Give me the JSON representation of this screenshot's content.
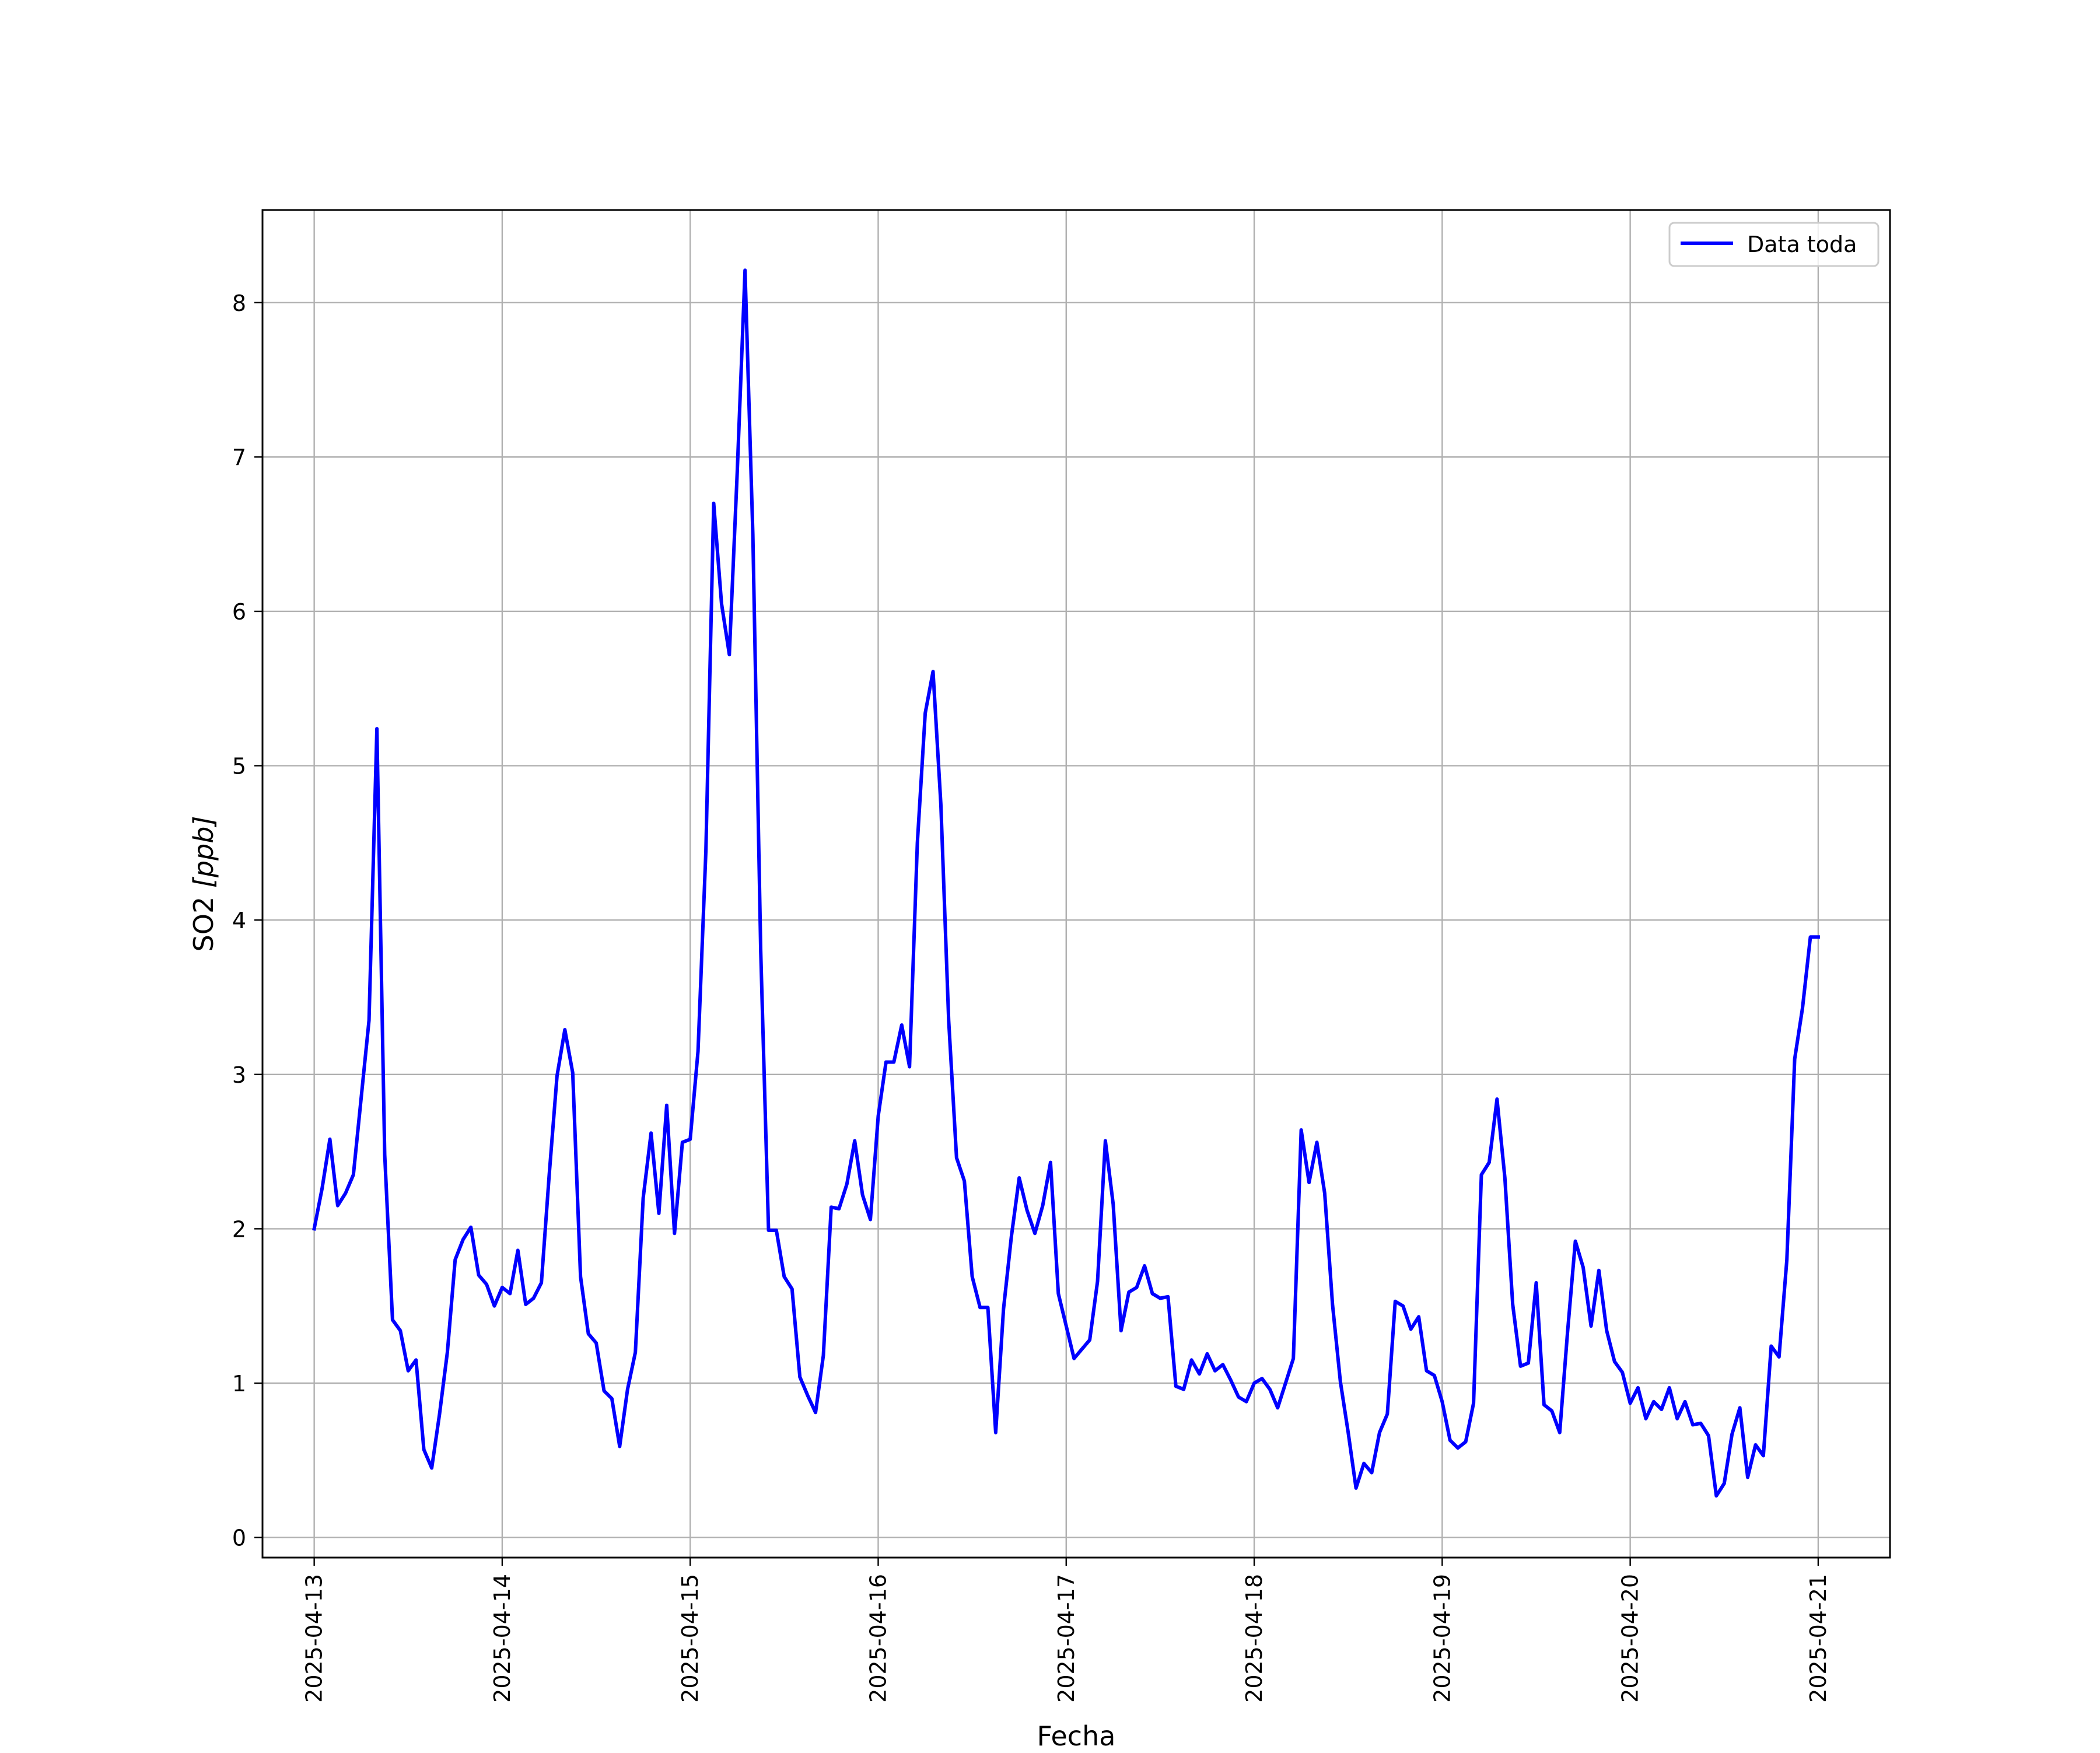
{
  "chart_data": {
    "type": "line",
    "title": "",
    "xlabel": "Fecha",
    "ylabel": "SO2 [ppb]",
    "ylabel_main": "SO2 ",
    "ylabel_unit": "[ppb]",
    "x_range": [
      "2025-04-12T17:24",
      "2025-04-21T09:10"
    ],
    "ylim": [
      -0.13,
      8.6
    ],
    "grid": true,
    "legend_position": "upper right",
    "x_ticks": [
      {
        "date": "2025-04-13",
        "label": "2025-04-13"
      },
      {
        "date": "2025-04-14",
        "label": "2025-04-14"
      },
      {
        "date": "2025-04-15",
        "label": "2025-04-15"
      },
      {
        "date": "2025-04-16",
        "label": "2025-04-16"
      },
      {
        "date": "2025-04-17",
        "label": "2025-04-17"
      },
      {
        "date": "2025-04-18",
        "label": "2025-04-18"
      },
      {
        "date": "2025-04-19",
        "label": "2025-04-19"
      },
      {
        "date": "2025-04-20",
        "label": "2025-04-20"
      },
      {
        "date": "2025-04-21",
        "label": "2025-04-21"
      }
    ],
    "y_ticks": [
      {
        "value": 0,
        "label": "0"
      },
      {
        "value": 1,
        "label": "1"
      },
      {
        "value": 2,
        "label": "2"
      },
      {
        "value": 3,
        "label": "3"
      },
      {
        "value": 4,
        "label": "4"
      },
      {
        "value": 5,
        "label": "5"
      },
      {
        "value": 6,
        "label": "6"
      },
      {
        "value": 7,
        "label": "7"
      },
      {
        "value": 8,
        "label": "8"
      }
    ],
    "series": [
      {
        "name": "Data toda",
        "color": "#0000ff",
        "x": [
          "2025-04-13T00:00",
          "2025-04-13T01:00",
          "2025-04-13T02:00",
          "2025-04-13T03:00",
          "2025-04-13T04:00",
          "2025-04-13T05:00",
          "2025-04-13T06:00",
          "2025-04-13T07:00",
          "2025-04-13T08:00",
          "2025-04-13T09:00",
          "2025-04-13T10:00",
          "2025-04-13T11:00",
          "2025-04-13T12:00",
          "2025-04-13T13:00",
          "2025-04-13T14:00",
          "2025-04-13T15:00",
          "2025-04-13T16:00",
          "2025-04-13T17:00",
          "2025-04-13T18:00",
          "2025-04-13T19:00",
          "2025-04-13T20:00",
          "2025-04-13T21:00",
          "2025-04-13T22:00",
          "2025-04-13T23:00",
          "2025-04-14T00:00",
          "2025-04-14T01:00",
          "2025-04-14T02:00",
          "2025-04-14T03:00",
          "2025-04-14T04:00",
          "2025-04-14T05:00",
          "2025-04-14T06:00",
          "2025-04-14T07:00",
          "2025-04-14T08:00",
          "2025-04-14T09:00",
          "2025-04-14T10:00",
          "2025-04-14T11:00",
          "2025-04-14T12:00",
          "2025-04-14T13:00",
          "2025-04-14T14:00",
          "2025-04-14T15:00",
          "2025-04-14T16:00",
          "2025-04-14T17:00",
          "2025-04-14T18:00",
          "2025-04-14T19:00",
          "2025-04-14T20:00",
          "2025-04-14T21:00",
          "2025-04-14T22:00",
          "2025-04-14T23:00",
          "2025-04-15T00:00",
          "2025-04-15T01:00",
          "2025-04-15T02:00",
          "2025-04-15T03:00",
          "2025-04-15T04:00",
          "2025-04-15T05:00",
          "2025-04-15T06:00",
          "2025-04-15T07:00",
          "2025-04-15T08:00",
          "2025-04-15T09:00",
          "2025-04-15T10:00",
          "2025-04-15T11:00",
          "2025-04-15T12:00",
          "2025-04-15T13:00",
          "2025-04-15T14:00",
          "2025-04-15T15:00",
          "2025-04-15T16:00",
          "2025-04-15T17:00",
          "2025-04-15T18:00",
          "2025-04-15T19:00",
          "2025-04-15T20:00",
          "2025-04-15T21:00",
          "2025-04-15T22:00",
          "2025-04-15T23:00",
          "2025-04-16T00:00",
          "2025-04-16T01:00",
          "2025-04-16T02:00",
          "2025-04-16T03:00",
          "2025-04-16T04:00",
          "2025-04-16T05:00",
          "2025-04-16T06:00",
          "2025-04-16T07:00",
          "2025-04-16T08:00",
          "2025-04-16T09:00",
          "2025-04-16T10:00",
          "2025-04-16T11:00",
          "2025-04-16T12:00",
          "2025-04-16T13:00",
          "2025-04-16T14:00",
          "2025-04-16T15:00",
          "2025-04-16T16:00",
          "2025-04-16T17:00",
          "2025-04-16T18:00",
          "2025-04-16T19:00",
          "2025-04-16T20:00",
          "2025-04-16T21:00",
          "2025-04-16T22:00",
          "2025-04-16T23:00",
          "2025-04-17T00:00",
          "2025-04-17T01:00",
          "2025-04-17T02:00",
          "2025-04-17T03:00",
          "2025-04-17T04:00",
          "2025-04-17T05:00",
          "2025-04-17T06:00",
          "2025-04-17T07:00",
          "2025-04-17T08:00",
          "2025-04-17T09:00",
          "2025-04-17T10:00",
          "2025-04-17T11:00",
          "2025-04-17T12:00",
          "2025-04-17T13:00",
          "2025-04-17T14:00",
          "2025-04-17T15:00",
          "2025-04-17T16:00",
          "2025-04-17T17:00",
          "2025-04-17T18:00",
          "2025-04-17T19:00",
          "2025-04-17T20:00",
          "2025-04-17T21:00",
          "2025-04-17T22:00",
          "2025-04-17T23:00",
          "2025-04-18T00:00",
          "2025-04-18T01:00",
          "2025-04-18T02:00",
          "2025-04-18T03:00",
          "2025-04-18T04:00",
          "2025-04-18T05:00",
          "2025-04-18T06:00",
          "2025-04-18T07:00",
          "2025-04-18T08:00",
          "2025-04-18T09:00",
          "2025-04-18T10:00",
          "2025-04-18T11:00",
          "2025-04-18T12:00",
          "2025-04-18T13:00",
          "2025-04-18T14:00",
          "2025-04-18T15:00",
          "2025-04-18T16:00",
          "2025-04-18T17:00",
          "2025-04-18T18:00",
          "2025-04-18T19:00",
          "2025-04-18T20:00",
          "2025-04-18T21:00",
          "2025-04-18T22:00",
          "2025-04-18T23:00",
          "2025-04-19T00:00",
          "2025-04-19T01:00",
          "2025-04-19T02:00",
          "2025-04-19T03:00",
          "2025-04-19T04:00",
          "2025-04-19T05:00",
          "2025-04-19T06:00",
          "2025-04-19T07:00",
          "2025-04-19T08:00",
          "2025-04-19T09:00",
          "2025-04-19T10:00",
          "2025-04-19T11:00",
          "2025-04-19T12:00",
          "2025-04-19T13:00",
          "2025-04-19T14:00",
          "2025-04-19T15:00",
          "2025-04-19T16:00",
          "2025-04-19T17:00",
          "2025-04-19T18:00",
          "2025-04-19T19:00",
          "2025-04-19T20:00",
          "2025-04-19T21:00",
          "2025-04-19T22:00",
          "2025-04-19T23:00",
          "2025-04-20T00:00",
          "2025-04-20T01:00",
          "2025-04-20T02:00",
          "2025-04-20T03:00",
          "2025-04-20T04:00",
          "2025-04-20T05:00",
          "2025-04-20T06:00",
          "2025-04-20T07:00",
          "2025-04-20T08:00",
          "2025-04-20T09:00",
          "2025-04-20T10:00",
          "2025-04-20T11:00",
          "2025-04-20T12:00",
          "2025-04-20T13:00",
          "2025-04-20T14:00",
          "2025-04-20T15:00",
          "2025-04-20T16:00",
          "2025-04-20T17:00",
          "2025-04-20T18:00",
          "2025-04-20T19:00",
          "2025-04-20T20:00",
          "2025-04-20T21:00",
          "2025-04-20T22:00",
          "2025-04-20T23:00",
          "2025-04-21T00:00"
        ],
        "values": [
          2.0,
          2.26,
          2.58,
          2.15,
          2.23,
          2.35,
          2.85,
          3.35,
          5.24,
          2.48,
          1.41,
          1.34,
          1.08,
          1.15,
          0.57,
          0.45,
          0.8,
          1.2,
          1.8,
          1.93,
          2.01,
          1.7,
          1.64,
          1.5,
          1.62,
          1.58,
          1.86,
          1.51,
          1.55,
          1.65,
          2.35,
          2.99,
          3.29,
          3.01,
          1.69,
          1.32,
          1.26,
          0.95,
          0.9,
          0.59,
          0.96,
          1.2,
          2.2,
          2.62,
          2.1,
          2.8,
          1.97,
          2.56,
          2.58,
          3.15,
          4.45,
          6.7,
          6.05,
          5.72,
          6.9,
          8.21,
          6.5,
          3.8,
          1.99,
          1.99,
          1.69,
          1.61,
          1.04,
          0.92,
          0.81,
          1.18,
          2.14,
          2.13,
          2.29,
          2.57,
          2.22,
          2.06,
          2.73,
          3.08,
          3.08,
          3.32,
          3.05,
          4.5,
          5.34,
          5.61,
          4.75,
          3.35,
          2.46,
          2.31,
          1.69,
          1.49,
          1.49,
          0.68,
          1.48,
          1.95,
          2.33,
          2.12,
          1.97,
          2.15,
          2.43,
          1.58,
          1.37,
          1.16,
          1.22,
          1.28,
          1.66,
          2.57,
          2.16,
          1.34,
          1.59,
          1.62,
          1.76,
          1.58,
          1.55,
          1.56,
          0.98,
          0.96,
          1.15,
          1.06,
          1.19,
          1.08,
          1.12,
          1.02,
          0.91,
          0.88,
          1.0,
          1.03,
          0.96,
          0.84,
          1.0,
          1.16,
          2.64,
          2.3,
          2.56,
          2.23,
          1.51,
          1.01,
          0.68,
          0.32,
          0.48,
          0.42,
          0.68,
          0.8,
          1.53,
          1.5,
          1.35,
          1.43,
          1.08,
          1.05,
          0.88,
          0.63,
          0.58,
          0.62,
          0.87,
          2.35,
          2.43,
          2.84,
          2.33,
          1.51,
          1.11,
          1.13,
          1.65,
          0.86,
          0.82,
          0.68,
          1.33,
          1.92,
          1.75,
          1.37,
          1.73,
          1.34,
          1.14,
          1.07,
          0.87,
          0.97,
          0.77,
          0.88,
          0.83,
          0.97,
          0.77,
          0.88,
          0.73,
          0.74,
          0.66,
          0.27,
          0.35,
          0.67,
          0.84,
          0.39,
          0.6,
          0.53,
          1.24,
          1.17,
          1.8,
          3.1,
          3.43,
          3.89,
          3.89
        ]
      }
    ]
  }
}
